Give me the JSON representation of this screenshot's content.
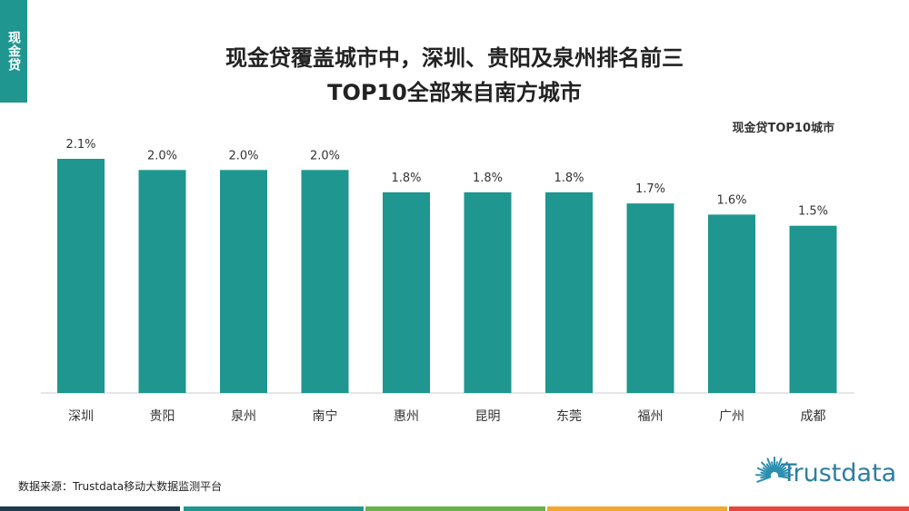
{
  "tab": {
    "label": "现金贷"
  },
  "title": {
    "line1": "现金贷覆盖城市中，深圳、贵阳及泉州排名前三",
    "line2": "TOP10全部来自南方城市"
  },
  "legend": {
    "label": "现金贷TOP10城市"
  },
  "chart_data": {
    "type": "bar",
    "categories": [
      "深圳",
      "贵阳",
      "泉州",
      "南宁",
      "惠州",
      "昆明",
      "东莞",
      "福州",
      "广州",
      "成都"
    ],
    "values": [
      2.1,
      2.0,
      2.0,
      2.0,
      1.8,
      1.8,
      1.8,
      1.7,
      1.6,
      1.5
    ],
    "value_labels": [
      "2.1%",
      "2.0%",
      "2.0%",
      "2.0%",
      "1.8%",
      "1.8%",
      "1.8%",
      "1.7%",
      "1.6%",
      "1.5%"
    ],
    "unit": "%",
    "bar_color": "#1f968f",
    "grid": false,
    "legend_position": "top-right"
  },
  "source": {
    "text": "数据来源：Trustdata移动大数据监测平台"
  },
  "logo": {
    "text": "Trustdata",
    "color": "#2c7ea0"
  },
  "bottom_bar_colors": [
    "#1f3a4a",
    "#1f968f",
    "#6ab04c",
    "#f0a830",
    "#e8453c"
  ]
}
